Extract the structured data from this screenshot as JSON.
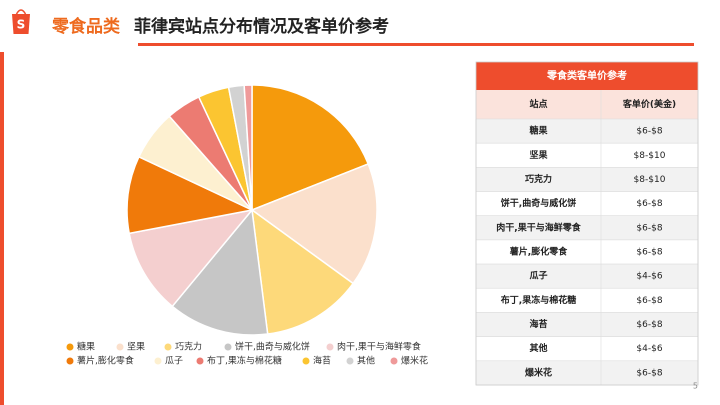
{
  "header": {
    "category": "零食品类",
    "title": "菲律宾站点分布情况及客单价参考"
  },
  "chart_data": {
    "type": "pie",
    "categories": [
      "糖果",
      "坚果",
      "巧克力",
      "饼干,曲奇与威化饼",
      "肉干,果干与海鲜零食",
      "薯片,膨化零食",
      "瓜子",
      "布丁,果冻与棉花糖",
      "海苔",
      "其他",
      "爆米花"
    ],
    "values": [
      19,
      16,
      13,
      13,
      11,
      10,
      6.5,
      4.5,
      4,
      2,
      1
    ],
    "colors": [
      "#f59a0c",
      "#fbe0cc",
      "#fdd97a",
      "#c6c6c6",
      "#f4cfcf",
      "#f07a0a",
      "#fdf0d0",
      "#ec7b72",
      "#fbc531",
      "#d2d2d2",
      "#ef9a9a"
    ],
    "legend": "bottom"
  },
  "table": {
    "title": "零食类客单价参考",
    "columns": [
      "站点",
      "客单价(美金)"
    ],
    "rows": [
      [
        "糖果",
        "$6-$8"
      ],
      [
        "坚果",
        "$8-$10"
      ],
      [
        "巧克力",
        "$8-$10"
      ],
      [
        "饼干,曲奇与威化饼",
        "$6-$8"
      ],
      [
        "肉干,果干与海鲜零食",
        "$6-$8"
      ],
      [
        "薯片,膨化零食",
        "$6-$8"
      ],
      [
        "瓜子",
        "$4-$6"
      ],
      [
        "布丁,果冻与棉花糖",
        "$6-$8"
      ],
      [
        "海苔",
        "$6-$8"
      ],
      [
        "其他",
        "$4-$6"
      ],
      [
        "爆米花",
        "$6-$8"
      ]
    ]
  },
  "page_number": "5"
}
